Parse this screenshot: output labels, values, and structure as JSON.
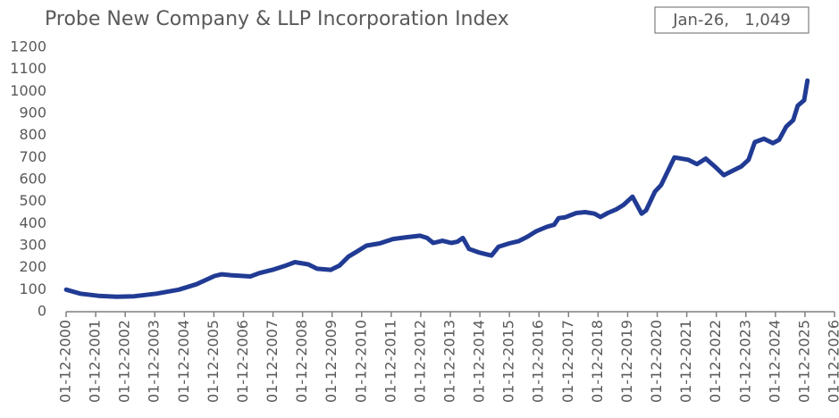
{
  "chart_data": {
    "type": "line",
    "title": "Probe New Company & LLP Incorporation Index",
    "annotation": "Jan-26,   1,049",
    "x": [
      2000.92,
      2001.4,
      2002.01,
      2002.61,
      2003.22,
      2003.97,
      2004.73,
      2005.33,
      2005.94,
      2006.18,
      2006.54,
      2007.15,
      2007.45,
      2007.9,
      2008.36,
      2008.66,
      2009.11,
      2009.41,
      2009.87,
      2010.17,
      2010.47,
      2010.78,
      2011.08,
      2011.53,
      2011.98,
      2012.44,
      2012.89,
      2013.13,
      2013.34,
      2013.65,
      2013.95,
      2014.16,
      2014.34,
      2014.55,
      2014.86,
      2015.16,
      2015.31,
      2015.55,
      2015.91,
      2016.22,
      2016.52,
      2016.82,
      2017.18,
      2017.43,
      2017.58,
      2017.79,
      2018.18,
      2018.48,
      2018.79,
      2019.0,
      2019.24,
      2019.54,
      2019.78,
      2020.08,
      2020.39,
      2020.54,
      2020.84,
      2021.05,
      2021.5,
      2021.96,
      2022.26,
      2022.56,
      2022.86,
      2023.17,
      2023.47,
      2023.77,
      2024.01,
      2024.22,
      2024.53,
      2024.83,
      2025.04,
      2025.28,
      2025.52,
      2025.67,
      2025.89,
      2026.0
    ],
    "series": [
      {
        "name": "Index",
        "color": "#213b94",
        "values": [
          100,
          82,
          72,
          68,
          70,
          82,
          100,
          125,
          162,
          170,
          165,
          160,
          175,
          190,
          210,
          225,
          215,
          195,
          190,
          210,
          250,
          275,
          300,
          310,
          330,
          338,
          345,
          335,
          312,
          322,
          312,
          318,
          335,
          285,
          270,
          260,
          255,
          295,
          310,
          320,
          340,
          365,
          385,
          395,
          425,
          428,
          448,
          452,
          445,
          430,
          448,
          465,
          485,
          522,
          445,
          460,
          545,
          575,
          700,
          690,
          670,
          695,
          660,
          620,
          640,
          660,
          690,
          770,
          785,
          765,
          780,
          840,
          870,
          935,
          960,
          1049
        ]
      }
    ],
    "xlim": [
      2000.917,
      2026.917
    ],
    "xticks": [
      {
        "value": 2000.917,
        "label": "01-12-2000"
      },
      {
        "value": 2001.917,
        "label": "01-12-2001"
      },
      {
        "value": 2002.917,
        "label": "01-12-2002"
      },
      {
        "value": 2003.917,
        "label": "01-12-2003"
      },
      {
        "value": 2004.917,
        "label": "01-12-2004"
      },
      {
        "value": 2005.917,
        "label": "01-12-2005"
      },
      {
        "value": 2006.917,
        "label": "01-12-2006"
      },
      {
        "value": 2007.917,
        "label": "01-12-2007"
      },
      {
        "value": 2008.917,
        "label": "01-12-2008"
      },
      {
        "value": 2009.917,
        "label": "01-12-2009"
      },
      {
        "value": 2010.917,
        "label": "01-12-2010"
      },
      {
        "value": 2011.917,
        "label": "01-12-2011"
      },
      {
        "value": 2012.917,
        "label": "01-12-2012"
      },
      {
        "value": 2013.917,
        "label": "01-12-2013"
      },
      {
        "value": 2014.917,
        "label": "01-12-2014"
      },
      {
        "value": 2015.917,
        "label": "01-12-2015"
      },
      {
        "value": 2016.917,
        "label": "01-12-2016"
      },
      {
        "value": 2017.917,
        "label": "01-12-2017"
      },
      {
        "value": 2018.917,
        "label": "01-12-2018"
      },
      {
        "value": 2019.917,
        "label": "01-12-2019"
      },
      {
        "value": 2020.917,
        "label": "01-12-2020"
      },
      {
        "value": 2021.917,
        "label": "01-12-2021"
      },
      {
        "value": 2022.917,
        "label": "01-12-2022"
      },
      {
        "value": 2023.917,
        "label": "01-12-2023"
      },
      {
        "value": 2024.917,
        "label": "01-12-2024"
      },
      {
        "value": 2025.917,
        "label": "01-12-2025"
      },
      {
        "value": 2026.917,
        "label": "01-12-2026"
      }
    ],
    "ylim": [
      0,
      1200
    ],
    "yticks": [
      0,
      100,
      200,
      300,
      400,
      500,
      600,
      700,
      800,
      900,
      1000,
      1100,
      1200
    ],
    "grid": false
  }
}
